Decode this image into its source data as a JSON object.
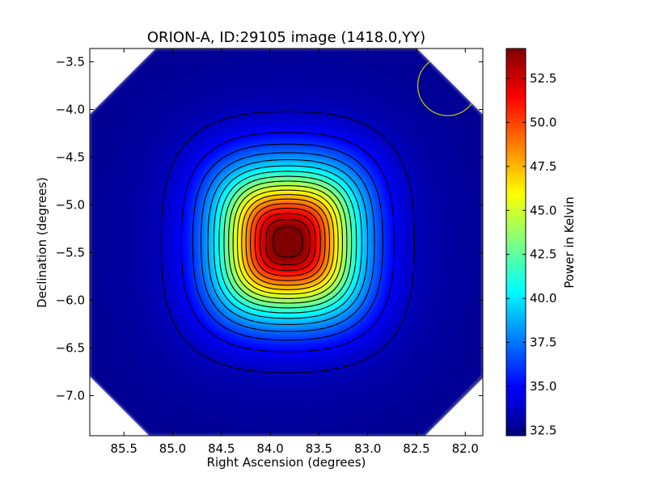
{
  "chart_data": {
    "type": "heatmap",
    "title": "ORION-A, ID:29105 image (1418.0,YY)",
    "xlabel": "Right Ascension (degrees)",
    "ylabel": "Declination (degrees)",
    "xlim": [
      85.85,
      81.82
    ],
    "ylim": [
      -7.42,
      -3.36
    ],
    "x_ticks": [
      "85.5",
      "85.0",
      "84.5",
      "84.0",
      "83.5",
      "83.0",
      "82.5",
      "82.0"
    ],
    "x_tick_values": [
      85.5,
      85.0,
      84.5,
      84.0,
      83.5,
      83.0,
      82.5,
      82.0
    ],
    "y_ticks": [
      "-3.5",
      "-4.0",
      "-4.5",
      "-5.0",
      "-5.5",
      "-6.0",
      "-6.5",
      "-7.0"
    ],
    "y_tick_values": [
      -3.5,
      -4.0,
      -4.5,
      -5.0,
      -5.5,
      -6.0,
      -6.5,
      -7.0
    ],
    "colormap": "jet",
    "colorbar": {
      "label": "Power in Kelvin",
      "range": [
        32.2,
        54.2
      ],
      "ticks": [
        "32.5",
        "35.0",
        "37.5",
        "40.0",
        "42.5",
        "45.0",
        "47.5",
        "50.0",
        "52.5"
      ],
      "tick_values": [
        32.5,
        35.0,
        37.5,
        40.0,
        42.5,
        45.0,
        47.5,
        50.0,
        52.5
      ]
    },
    "source": {
      "ra": 83.82,
      "dec": -5.39,
      "peak": 54.2,
      "background": 32.3
    },
    "contours": 18,
    "beam": {
      "ra": 82.18,
      "dec": -3.75,
      "color": "#bfbf00"
    },
    "image_boundary": "octagon",
    "grid": false
  }
}
